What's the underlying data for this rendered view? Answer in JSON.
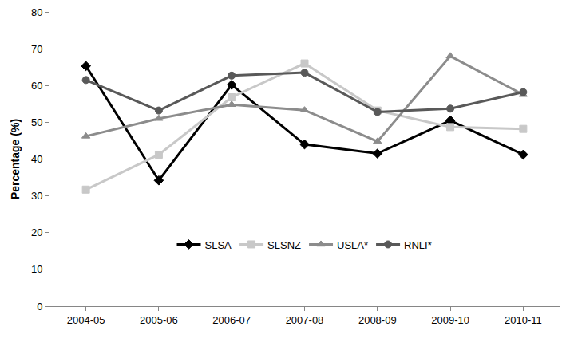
{
  "chart_data": {
    "type": "line",
    "y_label": "Percentage (%)",
    "categories": [
      "2004-05",
      "2005-06",
      "2006-07",
      "2007-08",
      "2008-09",
      "2009-10",
      "2010-11"
    ],
    "series": [
      {
        "name": "SLSA",
        "color": "#000000",
        "marker": "diamond",
        "line_style": "solid",
        "values": [
          65.3,
          34.2,
          60.2,
          44.0,
          41.5,
          50.5,
          41.2
        ]
      },
      {
        "name": "SLSNZ",
        "color": "#c8c8c8",
        "marker": "square",
        "line_style": "solid",
        "values": [
          31.7,
          41.2,
          56.8,
          66.0,
          53.2,
          48.7,
          48.2
        ]
      },
      {
        "name": "USLA*",
        "color": "#8c8c8c",
        "marker": "triangle-up",
        "line_style": "solid",
        "values": [
          46.2,
          51.0,
          54.8,
          53.3,
          44.8,
          68.0,
          57.5
        ]
      },
      {
        "name": "RNLI*",
        "color": "#595959",
        "marker": "circle",
        "line_style": "solid",
        "values": [
          61.5,
          53.2,
          62.7,
          63.5,
          52.8,
          53.7,
          58.2
        ]
      }
    ],
    "ylim": [
      0,
      80
    ],
    "yticks": [
      0,
      10,
      20,
      30,
      40,
      50,
      60,
      70,
      80
    ],
    "grid": false,
    "legend": "bottom"
  }
}
